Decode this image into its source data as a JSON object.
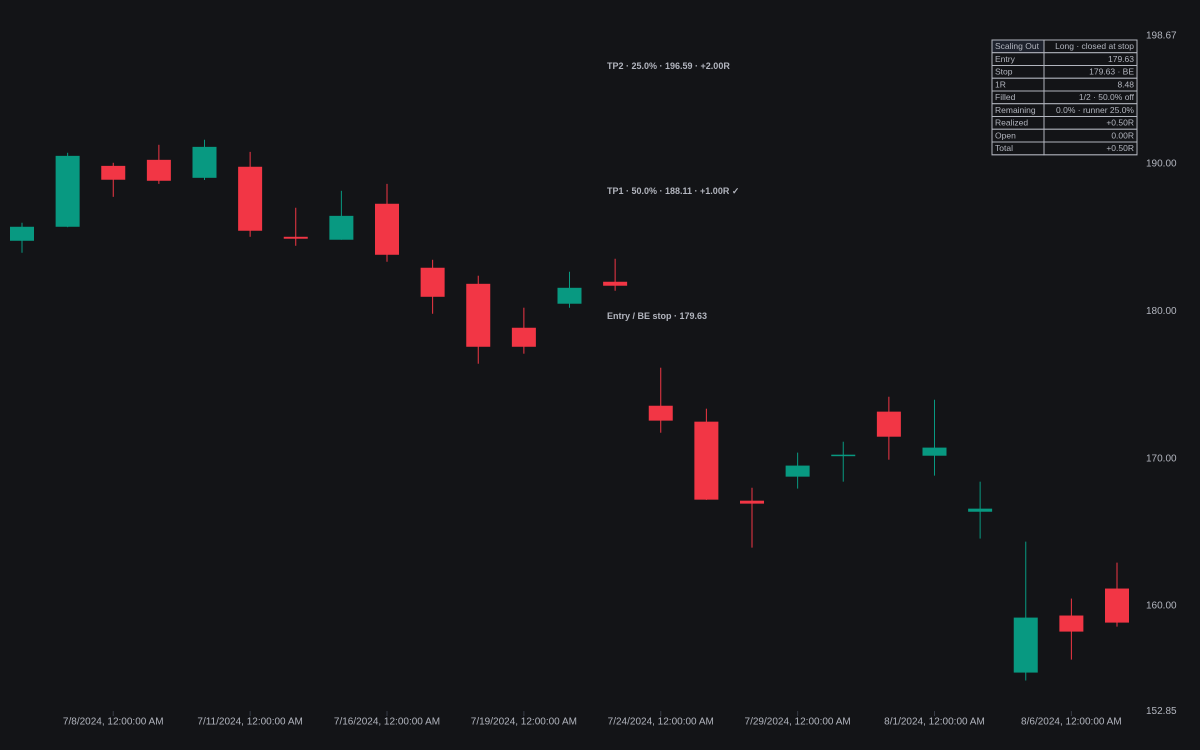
{
  "chart_data": {
    "type": "candlestick",
    "categories": [
      null,
      null,
      "7/8/2024, 12:00:00 AM",
      null,
      null,
      "7/11/2024, 12:00:00 AM",
      null,
      null,
      "7/16/2024, 12:00:00 AM",
      null,
      null,
      "7/19/2024, 12:00:00 AM",
      null,
      null,
      "7/24/2024, 12:00:00 AM",
      null,
      null,
      "7/29/2024, 12:00:00 AM",
      null,
      null,
      "8/1/2024, 12:00:00 AM",
      null,
      null,
      "8/6/2024, 12:00:00 AM",
      null
    ],
    "open": [
      184.78,
      185.73,
      189.86,
      190.27,
      189.05,
      189.8,
      185.05,
      184.85,
      187.29,
      182.95,
      181.86,
      178.88,
      180.51,
      182.0,
      173.59,
      172.51,
      167.15,
      168.78,
      170.2,
      173.19,
      170.2,
      166.4,
      155.49,
      159.36,
      161.19
    ],
    "high": [
      186.0,
      190.75,
      190.07,
      191.29,
      191.63,
      190.81,
      187.02,
      188.17,
      188.64,
      183.49,
      182.41,
      180.24,
      182.68,
      183.56,
      176.17,
      173.39,
      168.03,
      170.41,
      171.15,
      174.2,
      174.0,
      168.44,
      164.37,
      160.51,
      162.95
    ],
    "low": [
      183.97,
      185.7,
      187.76,
      188.64,
      188.9,
      185.05,
      184.44,
      184.85,
      183.36,
      179.83,
      176.44,
      177.12,
      180.24,
      181.39,
      171.76,
      167.2,
      163.97,
      167.97,
      168.44,
      169.93,
      168.85,
      164.58,
      154.95,
      156.37,
      158.61
    ],
    "close": [
      185.73,
      190.54,
      188.92,
      188.85,
      191.15,
      185.46,
      184.92,
      186.47,
      183.83,
      180.98,
      177.59,
      177.59,
      181.59,
      181.73,
      172.58,
      167.22,
      166.95,
      169.53,
      170.27,
      171.49,
      170.75,
      166.61,
      159.22,
      158.27,
      158.88
    ],
    "up_color": "#089981",
    "down_color": "#f23645",
    "ylim": [
      152.85,
      198.67
    ],
    "yticks": [
      152.85,
      {
        "value": 160,
        "label": "160.00"
      },
      {
        "value": 170,
        "label": "170.00"
      },
      {
        "value": 180,
        "label": "180.00"
      },
      {
        "value": 190,
        "label": "190.00"
      },
      198.67
    ],
    "annotations": [
      {
        "label": "TP2 · 25.0% · 196.59 · +2.00R",
        "value": 196.59,
        "color": "#089981"
      },
      {
        "label": "TP1 · 50.0% · 188.11 · +1.00R ✓",
        "value": 188.11,
        "color": "#0b4a40"
      },
      {
        "label": "Entry / BE stop · 179.63",
        "value": 179.63,
        "color": "#4a7fd4"
      }
    ]
  },
  "panel": {
    "rows": [
      {
        "label": "Scaling Out",
        "value": "Long · closed at stop",
        "color": "#089981"
      },
      {
        "label": "Entry",
        "value": "179.63",
        "color": "#d1d4dc"
      },
      {
        "label": "Stop",
        "value": "179.63 · BE",
        "color": "#d1d4dc"
      },
      {
        "label": "1R",
        "value": "8.48",
        "color": "#d1d4dc"
      },
      {
        "label": "Filled",
        "value": "1/2 · 50.0% off",
        "color": "#d1d4dc"
      },
      {
        "label": "Remaining",
        "value": "0.0% · runner 25.0%",
        "color": "#d1d4dc"
      },
      {
        "label": "Realized",
        "value": "+0.50R",
        "color": "#089981"
      },
      {
        "label": "Open",
        "value": "0.00R",
        "color": "#787b86"
      },
      {
        "label": "Total",
        "value": "+0.50R",
        "color": "#089981"
      }
    ]
  }
}
